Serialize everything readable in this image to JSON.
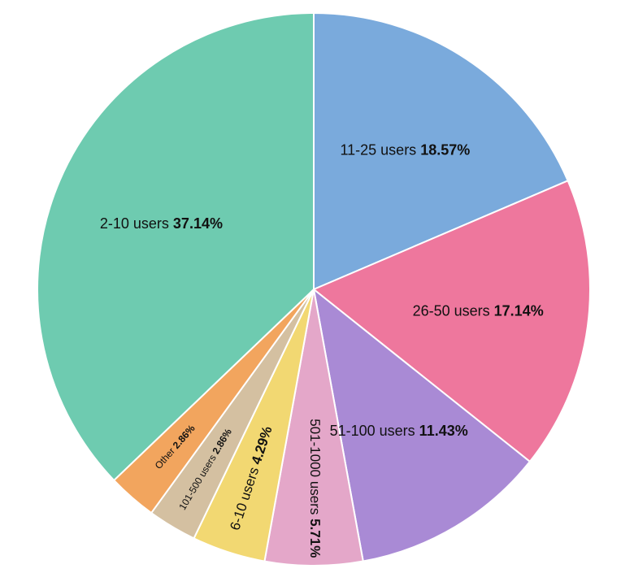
{
  "chart_data": {
    "type": "pie",
    "categories": [
      "11-25 users",
      "26-50 users",
      "51-100 users",
      "501-1000 users",
      "6-10 users",
      "101-500 users",
      "Other",
      "2-10 users"
    ],
    "values": [
      18.57,
      17.14,
      11.43,
      5.71,
      4.29,
      2.86,
      2.86,
      37.14
    ],
    "value_labels": [
      "18.57%",
      "17.14%",
      "11.43%",
      "5.71%",
      "4.29%",
      "2.86%",
      "2.86%",
      "37.14%"
    ],
    "colors": [
      "#7aaadc",
      "#ee779d",
      "#a98ad5",
      "#e4a7c9",
      "#f2d872",
      "#d4c0a1",
      "#f2a55e",
      "#6ecbb0"
    ]
  }
}
